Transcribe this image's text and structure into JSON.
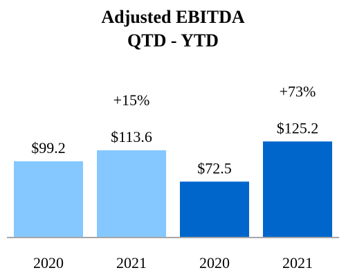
{
  "title": "Adjusted EBITDA",
  "subtitle": "QTD - YTD",
  "chart_data": {
    "type": "bar",
    "title": "Adjusted EBITDA",
    "subtitle": "QTD - YTD",
    "categories": [
      "2020",
      "2021",
      "2020",
      "2021"
    ],
    "values": [
      99.2,
      113.6,
      72.5,
      125.2
    ],
    "value_labels": [
      "$99.2",
      "$113.6",
      "$72.5",
      "$125.2"
    ],
    "bar_colors": [
      "#85c8ff",
      "#85c8ff",
      "#0066cc",
      "#0066cc"
    ],
    "change_labels": [
      {
        "bar_index": 1,
        "text": "+15%"
      },
      {
        "bar_index": 3,
        "text": "+73%"
      }
    ],
    "xlabel": "",
    "ylabel": "",
    "grid": false,
    "axis_color": "#a6a6a6"
  }
}
